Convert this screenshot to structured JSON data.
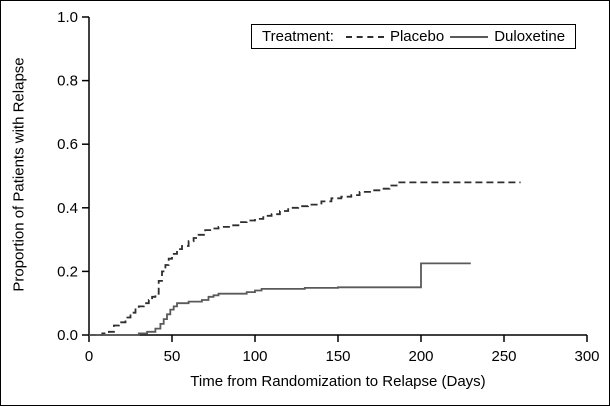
{
  "chart_data": {
    "type": "line",
    "title": "",
    "xlabel": "Time from Randomization to Relapse (Days)",
    "ylabel": "Proportion of Patients with Relapse",
    "xlim": [
      0,
      300
    ],
    "ylim": [
      0,
      1
    ],
    "xticks": [
      0,
      50,
      100,
      150,
      200,
      250,
      300
    ],
    "yticks": [
      0,
      0.2,
      0.4,
      0.6,
      0.8,
      1
    ],
    "grid": false,
    "axis_color": "#000000",
    "background": "#ffffff",
    "legend": {
      "title": "Treatment:",
      "position": "top-right",
      "entries": [
        {
          "name": "Placebo",
          "line_style": "dashed",
          "color": "#2e2e2e"
        },
        {
          "name": "Duloxetine",
          "line_style": "solid",
          "color": "#5a5a5a"
        }
      ]
    },
    "series": [
      {
        "name": "Placebo",
        "style": "dashed",
        "color": "#2e2e2e",
        "step": true,
        "points": [
          [
            0,
            0
          ],
          [
            8,
            0.005
          ],
          [
            12,
            0.01
          ],
          [
            15,
            0.03
          ],
          [
            18,
            0.04
          ],
          [
            22,
            0.055
          ],
          [
            25,
            0.07
          ],
          [
            28,
            0.085
          ],
          [
            30,
            0.09
          ],
          [
            33,
            0.1
          ],
          [
            36,
            0.11
          ],
          [
            38,
            0.12
          ],
          [
            40,
            0.13
          ],
          [
            42,
            0.17
          ],
          [
            44,
            0.2
          ],
          [
            46,
            0.22
          ],
          [
            48,
            0.24
          ],
          [
            50,
            0.255
          ],
          [
            53,
            0.27
          ],
          [
            56,
            0.28
          ],
          [
            60,
            0.295
          ],
          [
            63,
            0.305
          ],
          [
            66,
            0.315
          ],
          [
            70,
            0.33
          ],
          [
            74,
            0.335
          ],
          [
            78,
            0.34
          ],
          [
            85,
            0.345
          ],
          [
            90,
            0.355
          ],
          [
            95,
            0.36
          ],
          [
            100,
            0.365
          ],
          [
            105,
            0.375
          ],
          [
            110,
            0.38
          ],
          [
            115,
            0.39
          ],
          [
            120,
            0.4
          ],
          [
            126,
            0.405
          ],
          [
            132,
            0.41
          ],
          [
            140,
            0.42
          ],
          [
            146,
            0.43
          ],
          [
            152,
            0.435
          ],
          [
            158,
            0.44
          ],
          [
            163,
            0.45
          ],
          [
            170,
            0.455
          ],
          [
            176,
            0.46
          ],
          [
            181,
            0.47
          ],
          [
            186,
            0.48
          ],
          [
            260,
            0.48
          ]
        ]
      },
      {
        "name": "Duloxetine",
        "style": "solid",
        "color": "#5a5a5a",
        "step": true,
        "points": [
          [
            0,
            0
          ],
          [
            30,
            0.005
          ],
          [
            35,
            0.01
          ],
          [
            40,
            0.02
          ],
          [
            43,
            0.035
          ],
          [
            45,
            0.05
          ],
          [
            47,
            0.065
          ],
          [
            49,
            0.08
          ],
          [
            51,
            0.09
          ],
          [
            53,
            0.1
          ],
          [
            60,
            0.105
          ],
          [
            68,
            0.11
          ],
          [
            72,
            0.12
          ],
          [
            75,
            0.125
          ],
          [
            78,
            0.13
          ],
          [
            95,
            0.135
          ],
          [
            100,
            0.14
          ],
          [
            104,
            0.145
          ],
          [
            130,
            0.148
          ],
          [
            150,
            0.15
          ],
          [
            199,
            0.15
          ],
          [
            200,
            0.225
          ],
          [
            230,
            0.225
          ]
        ]
      }
    ]
  }
}
